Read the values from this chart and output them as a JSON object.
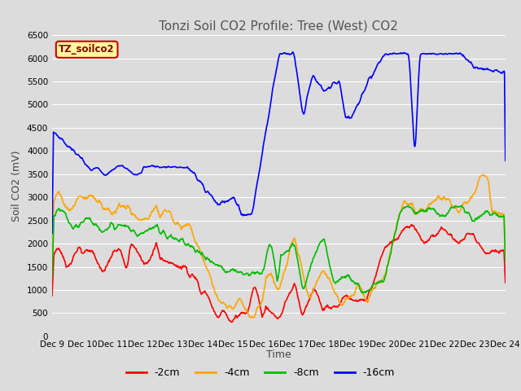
{
  "title": "Tonzi Soil CO2 Profile: Tree (West) CO2",
  "ylabel": "Soil CO2 (mV)",
  "xlabel": "Time",
  "legend_label": "TZ_soilco2",
  "ylim": [
    0,
    6500
  ],
  "yticks": [
    0,
    500,
    1000,
    1500,
    2000,
    2500,
    3000,
    3500,
    4000,
    4500,
    5000,
    5500,
    6000,
    6500
  ],
  "xtick_labels": [
    "Dec 9",
    "Dec 10",
    "Dec 11",
    "Dec 12",
    "Dec 13",
    "Dec 14",
    "Dec 15",
    "Dec 16",
    "Dec 17",
    "Dec 18",
    "Dec 19",
    "Dec 20",
    "Dec 21",
    "Dec 22",
    "Dec 23",
    "Dec 24"
  ],
  "line_colors": {
    "2cm": "#ff0000",
    "4cm": "#ffa500",
    "8cm": "#00bb00",
    "16cm": "#0000ff"
  },
  "legend_entries": [
    "-2cm",
    "-4cm",
    "-8cm",
    "-16cm"
  ],
  "legend_colors": [
    "#ff0000",
    "#ffa500",
    "#00bb00",
    "#0000ff"
  ],
  "fig_bg": "#dcdcdc",
  "plot_bg": "#dcdcdc",
  "title_color": "#555555",
  "title_fontsize": 11,
  "axis_label_fontsize": 9,
  "tick_fontsize": 7.5,
  "legend_box_facecolor": "#ffffa0",
  "legend_box_edgecolor": "#cc0000",
  "grid_color": "#ffffff",
  "linewidth": 1.2
}
